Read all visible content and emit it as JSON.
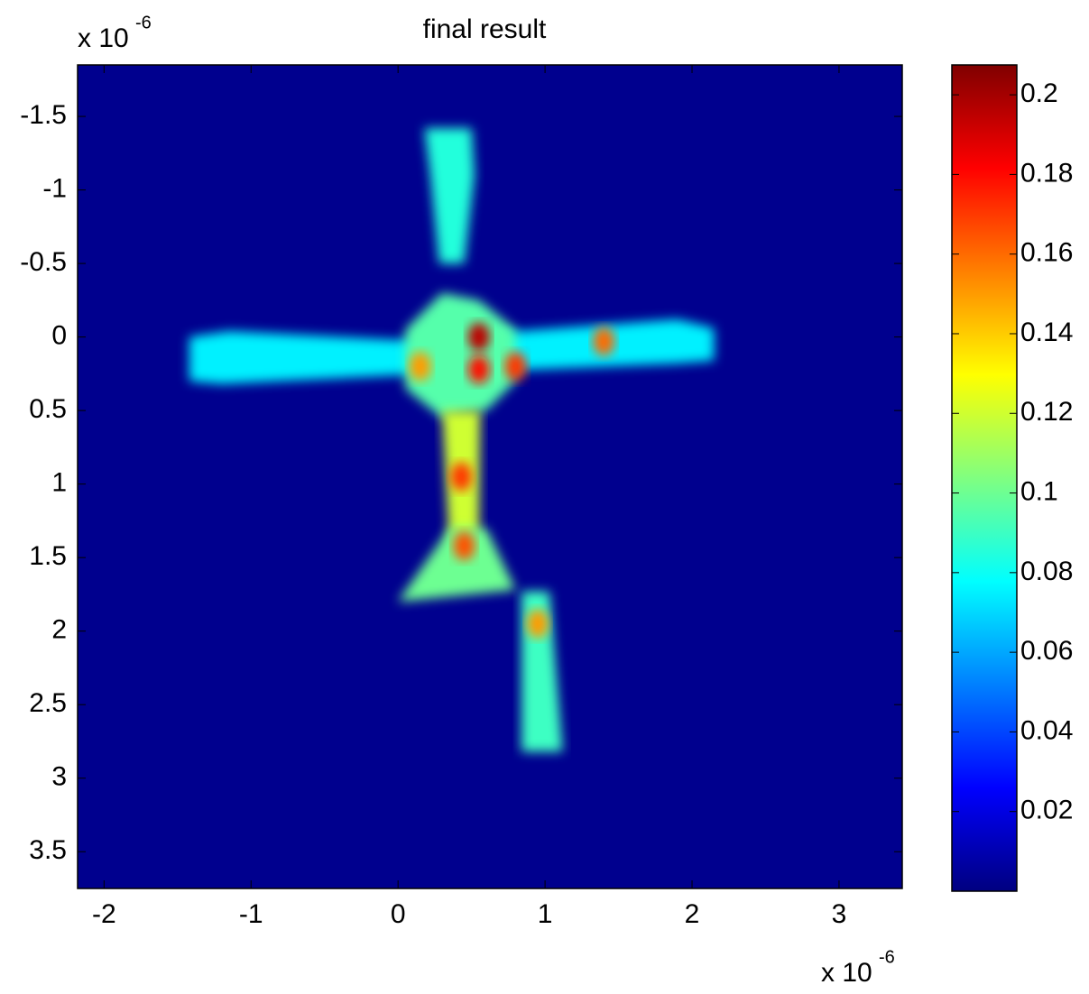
{
  "chart_data": {
    "type": "heatmap",
    "title": "final result",
    "x_multiplier": "x 10",
    "x_exponent": "-6",
    "y_multiplier": "x 10",
    "y_exponent": "-6",
    "xlim": [
      -2.18,
      3.43
    ],
    "xticks": [
      -2,
      -1,
      0,
      1,
      2,
      3
    ],
    "ylim": [
      -1.85,
      3.75
    ],
    "yticks": [
      -1.5,
      -1,
      -0.5,
      0,
      0.5,
      1,
      1.5,
      2,
      2.5,
      3,
      3.5
    ],
    "y_reversed": true,
    "colormap": "jet",
    "clim": [
      0,
      0.2075
    ],
    "cticks": [
      0.02,
      0.04,
      0.06,
      0.08,
      0.1,
      0.12,
      0.14,
      0.16,
      0.18,
      0.2
    ],
    "background": 0.003,
    "regions": [
      {
        "value": 0.085,
        "points": [
          [
            0.18,
            -1.42
          ],
          [
            0.5,
            -1.42
          ],
          [
            0.52,
            -1.1
          ],
          [
            0.45,
            -0.5
          ],
          [
            0.28,
            -0.5
          ],
          [
            0.22,
            -1.1
          ]
        ]
      },
      {
        "value": 0.075,
        "points": [
          [
            -1.42,
            0.0
          ],
          [
            -1.15,
            -0.04
          ],
          [
            0,
            0.02
          ],
          [
            1.9,
            -0.12
          ],
          [
            2.15,
            -0.06
          ],
          [
            2.15,
            0.16
          ],
          [
            1.9,
            0.18
          ],
          [
            0,
            0.26
          ],
          [
            -1.2,
            0.32
          ],
          [
            -1.42,
            0.3
          ]
        ]
      },
      {
        "value": 0.095,
        "points": [
          [
            0.05,
            -0.05
          ],
          [
            0.3,
            -0.3
          ],
          [
            0.55,
            -0.25
          ],
          [
            0.8,
            -0.05
          ],
          [
            0.8,
            0.3
          ],
          [
            0.6,
            0.5
          ],
          [
            0.3,
            0.55
          ],
          [
            0.05,
            0.35
          ]
        ]
      },
      {
        "value": 0.12,
        "points": [
          [
            0.3,
            0.5
          ],
          [
            0.56,
            0.5
          ],
          [
            0.55,
            1.45
          ],
          [
            0.35,
            1.45
          ]
        ]
      },
      {
        "value": 0.1,
        "points": [
          [
            0.35,
            1.3
          ],
          [
            0.6,
            1.3
          ],
          [
            0.8,
            1.72
          ],
          [
            0.0,
            1.8
          ]
        ]
      },
      {
        "value": 0.09,
        "points": [
          [
            0.84,
            1.73
          ],
          [
            1.03,
            1.73
          ],
          [
            1.12,
            2.82
          ],
          [
            0.84,
            2.82
          ]
        ]
      }
    ],
    "hotspots": [
      {
        "value": 0.195,
        "point": [
          0.55,
          0.0
        ]
      },
      {
        "value": 0.18,
        "point": [
          0.55,
          0.22
        ]
      },
      {
        "value": 0.17,
        "point": [
          0.8,
          0.2
        ]
      },
      {
        "value": 0.17,
        "point": [
          0.43,
          0.95
        ]
      },
      {
        "value": 0.165,
        "point": [
          0.45,
          1.42
        ]
      },
      {
        "value": 0.15,
        "point": [
          0.95,
          1.95
        ]
      },
      {
        "value": 0.16,
        "point": [
          1.4,
          0.03
        ]
      },
      {
        "value": 0.15,
        "point": [
          0.15,
          0.2
        ]
      }
    ]
  }
}
